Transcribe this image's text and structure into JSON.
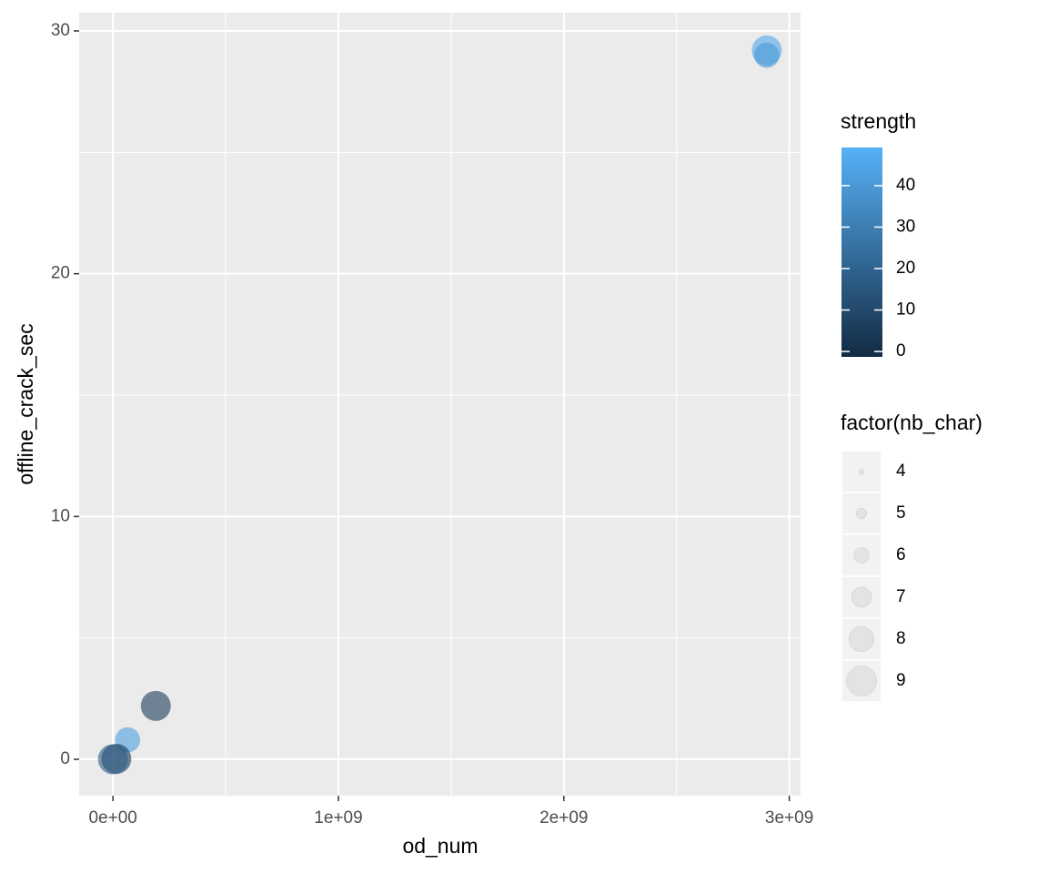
{
  "chart_data": {
    "type": "scatter",
    "x_label": "od_num",
    "y_label": "offline_crack_sec",
    "xlim": [
      -150000000,
      3050000000
    ],
    "ylim": [
      -1.5,
      30.75
    ],
    "xticks": [
      {
        "value": 0,
        "label": "0e+00"
      },
      {
        "value": 1000000000,
        "label": "1e+09"
      },
      {
        "value": 2000000000,
        "label": "2e+09"
      },
      {
        "value": 3000000000,
        "label": "3e+09"
      }
    ],
    "yticks": [
      0,
      10,
      20,
      30
    ],
    "grid": true,
    "panel_color": "#ebebeb",
    "point_opacity": 0.6,
    "x": [
      2900000000,
      2900000000,
      190000000,
      65000000,
      15000000,
      0
    ],
    "y": [
      29.2,
      29.0,
      2.2,
      0.8,
      0.02,
      0
    ],
    "strength": [
      46,
      40,
      5,
      42,
      4,
      18
    ],
    "nb_char": [
      9,
      8,
      9,
      8,
      9,
      9
    ],
    "color_legend": {
      "title": "strength",
      "low": "#132B43",
      "high": "#56B1F7",
      "lim": [
        -1.3,
        49.2
      ],
      "ticks": [
        0,
        10,
        20,
        30,
        40
      ]
    },
    "size_legend": {
      "title": "factor(nb_char)",
      "sizes": [
        4,
        5,
        6,
        7,
        8,
        9
      ],
      "color": "#d9d9d9"
    }
  }
}
